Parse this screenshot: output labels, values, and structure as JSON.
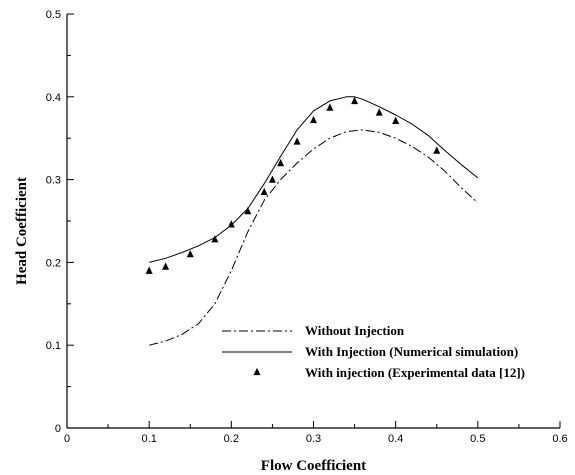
{
  "chart_data": {
    "type": "line",
    "xlabel": "Flow Coefficient",
    "ylabel": "Head Coefficient",
    "xlim": [
      0,
      0.6
    ],
    "ylim": [
      0,
      0.5
    ],
    "x_ticks": [
      "0",
      "0.1",
      "0.2",
      "0.3",
      "0.4",
      "0.5",
      "0.6"
    ],
    "y_ticks": [
      "0",
      "0.1",
      "0.2",
      "0.3",
      "0.4",
      "0.5"
    ],
    "grid": false,
    "legend_position": "bottom-right",
    "series": [
      {
        "name": "Without Injection",
        "style": "dash-dot",
        "x": [
          0.1,
          0.12,
          0.14,
          0.16,
          0.18,
          0.2,
          0.22,
          0.24,
          0.26,
          0.28,
          0.3,
          0.32,
          0.34,
          0.36,
          0.38,
          0.4,
          0.42,
          0.44,
          0.46,
          0.48,
          0.5
        ],
        "y": [
          0.1,
          0.105,
          0.113,
          0.126,
          0.15,
          0.19,
          0.237,
          0.275,
          0.3,
          0.32,
          0.337,
          0.35,
          0.358,
          0.36,
          0.357,
          0.35,
          0.34,
          0.327,
          0.31,
          0.29,
          0.272
        ]
      },
      {
        "name": "With Injection (Numerical simulation)",
        "style": "solid",
        "x": [
          0.1,
          0.12,
          0.14,
          0.16,
          0.18,
          0.2,
          0.22,
          0.24,
          0.26,
          0.28,
          0.3,
          0.32,
          0.34,
          0.35,
          0.36,
          0.38,
          0.4,
          0.42,
          0.44,
          0.46,
          0.48,
          0.5
        ],
        "y": [
          0.2,
          0.205,
          0.212,
          0.22,
          0.23,
          0.245,
          0.265,
          0.295,
          0.328,
          0.36,
          0.383,
          0.395,
          0.4,
          0.4,
          0.397,
          0.388,
          0.378,
          0.367,
          0.353,
          0.335,
          0.318,
          0.302
        ]
      },
      {
        "name": "With injection (Experimental data [12])",
        "style": "triangle-markers",
        "x": [
          0.1,
          0.12,
          0.15,
          0.18,
          0.2,
          0.22,
          0.24,
          0.25,
          0.26,
          0.28,
          0.3,
          0.32,
          0.35,
          0.38,
          0.4,
          0.45
        ],
        "y": [
          0.19,
          0.195,
          0.21,
          0.228,
          0.246,
          0.262,
          0.285,
          0.3,
          0.32,
          0.346,
          0.372,
          0.387,
          0.395,
          0.381,
          0.371,
          0.335
        ]
      }
    ]
  }
}
